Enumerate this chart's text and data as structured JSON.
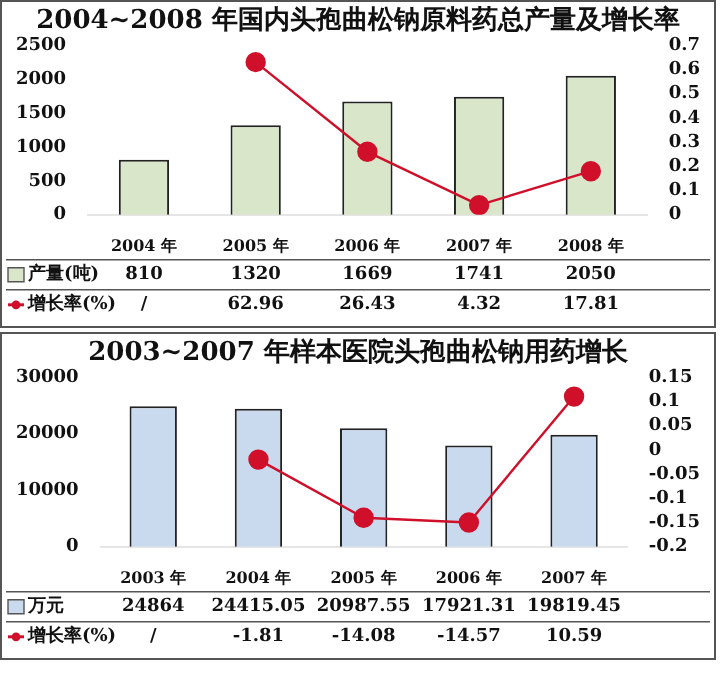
{
  "chart_data": [
    {
      "type": "bar",
      "title": "2004~2008 年国内头孢曲松钠原料药总产量及增长率",
      "categories": [
        "2004 年",
        "2005 年",
        "2006 年",
        "2007 年",
        "2008 年"
      ],
      "series": [
        {
          "name": "产量(吨)",
          "color": "#d9e6c9",
          "values": [
            810,
            1320,
            1669,
            1741,
            2050
          ],
          "value_labels": [
            "810",
            "1320",
            "1669",
            "1741",
            "2050"
          ]
        },
        {
          "name": "增长率(%)",
          "type": "line",
          "axis": "y2",
          "color": "#d0102a",
          "values": [
            null,
            0.63,
            0.26,
            0.04,
            0.18
          ]
        }
      ],
      "annotations": [
        "/",
        "62.96",
        "26.43",
        "4.32",
        "17.81"
      ],
      "ylim": [
        0,
        2500
      ],
      "yticks": [
        0,
        500,
        1000,
        1500,
        2000,
        2500
      ],
      "y2lim": [
        0,
        0.7
      ],
      "y2ticks": [
        0,
        0.1,
        0.2,
        0.3,
        0.4,
        0.5,
        0.6,
        0.7
      ],
      "marker": "circle",
      "line_style": "solid",
      "grid": false,
      "legend": "bottom left"
    },
    {
      "type": "bar",
      "title": "2003~2007 年样本医院头孢曲松钠用药增长",
      "categories": [
        "2003 年",
        "2004 年",
        "2005 年",
        "2006 年",
        "2007 年"
      ],
      "series": [
        {
          "name": "万元",
          "color": "#c9d9ee",
          "values": [
            24864,
            24415.05,
            20987.55,
            17921.31,
            19819.45
          ],
          "value_labels": [
            "24864",
            "24415.05",
            "20987.55",
            "17921.31",
            "19819.45"
          ]
        },
        {
          "name": "增长率(%)",
          "type": "line",
          "axis": "y2",
          "color": "#d0102a",
          "values": [
            null,
            -0.02,
            -0.14,
            -0.15,
            0.11
          ]
        }
      ],
      "annotations": [
        "/",
        "-1.81",
        "-14.08",
        "-14.57",
        "10.59"
      ],
      "ylim": [
        0,
        30000
      ],
      "yticks": [
        0,
        10000,
        20000,
        30000
      ],
      "y2lim": [
        -0.2,
        0.15
      ],
      "y2ticks": [
        -0.2,
        -0.15,
        -0.1,
        -0.05,
        0,
        0.05,
        0.1,
        0.15
      ],
      "marker": "circle",
      "line_style": "solid",
      "grid": false,
      "legend": "bottom left"
    }
  ]
}
